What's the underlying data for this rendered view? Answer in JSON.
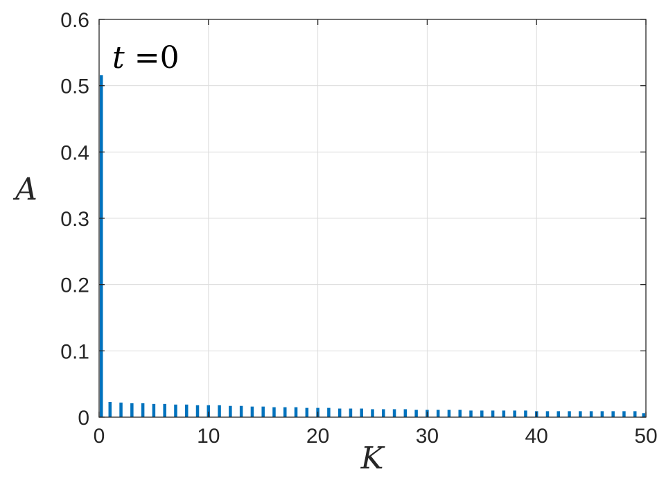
{
  "chart_data": {
    "type": "bar",
    "title": "",
    "xlabel": "K",
    "ylabel": "A",
    "annotation": {
      "variable": "t",
      "operator": "=",
      "value": "0"
    },
    "xlim": [
      0,
      50
    ],
    "ylim": [
      0,
      0.6
    ],
    "xticks": [
      0,
      10,
      20,
      30,
      40,
      50
    ],
    "yticks": [
      0,
      0.1,
      0.2,
      0.3,
      0.4,
      0.5,
      0.6
    ],
    "xtick_labels": [
      "0",
      "10",
      "20",
      "30",
      "40",
      "50"
    ],
    "ytick_labels": [
      "0",
      "0.1",
      "0.2",
      "0.3",
      "0.4",
      "0.5",
      "0.6"
    ],
    "grid": true,
    "bar_color": "#0072BD",
    "x": [
      0,
      1,
      2,
      3,
      4,
      5,
      6,
      7,
      8,
      9,
      10,
      11,
      12,
      13,
      14,
      15,
      16,
      17,
      18,
      19,
      20,
      21,
      22,
      23,
      24,
      25,
      26,
      27,
      28,
      29,
      30,
      31,
      32,
      33,
      34,
      35,
      36,
      37,
      38,
      39,
      40,
      41,
      42,
      43,
      44,
      45,
      46,
      47,
      48,
      49,
      50
    ],
    "values": [
      0.516,
      0.023,
      0.022,
      0.021,
      0.021,
      0.02,
      0.02,
      0.019,
      0.019,
      0.018,
      0.018,
      0.018,
      0.017,
      0.017,
      0.016,
      0.016,
      0.015,
      0.015,
      0.015,
      0.014,
      0.014,
      0.014,
      0.013,
      0.013,
      0.013,
      0.012,
      0.012,
      0.012,
      0.012,
      0.011,
      0.011,
      0.011,
      0.011,
      0.011,
      0.01,
      0.01,
      0.01,
      0.01,
      0.01,
      0.01,
      0.009,
      0.009,
      0.009,
      0.009,
      0.009,
      0.009,
      0.009,
      0.009,
      0.009,
      0.009,
      0.006
    ]
  }
}
